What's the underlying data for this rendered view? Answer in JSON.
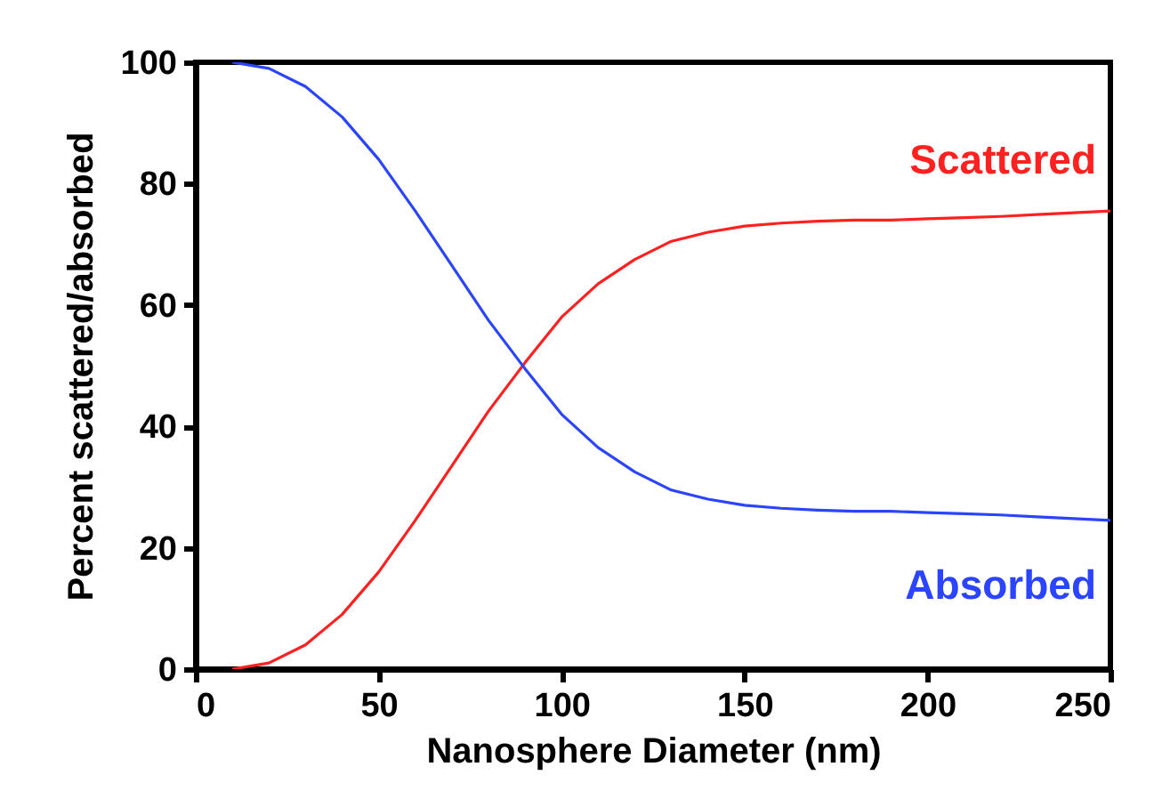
{
  "chart_data": {
    "type": "line",
    "xlabel": "Nanosphere Diameter (nm)",
    "ylabel": "Percent scattered/absorbed",
    "x": [
      10,
      20,
      30,
      40,
      50,
      60,
      70,
      80,
      90,
      100,
      110,
      120,
      130,
      140,
      150,
      160,
      170,
      180,
      190,
      200,
      210,
      220,
      230,
      240,
      250
    ],
    "series": [
      {
        "name": "Scattered",
        "color": "#ff2020",
        "values": [
          0,
          1,
          4,
          9,
          16,
          24.5,
          33.5,
          42.5,
          50.5,
          58,
          63.5,
          67.5,
          70.5,
          72,
          73,
          73.5,
          73.8,
          74,
          74,
          74.2,
          74.4,
          74.6,
          74.9,
          75.2,
          75.5
        ]
      },
      {
        "name": "Absorbed",
        "color": "#2b44ff",
        "values": [
          100,
          99,
          96,
          91,
          84,
          75.5,
          66.5,
          57.5,
          49.5,
          42,
          36.5,
          32.5,
          29.5,
          28,
          27,
          26.5,
          26.2,
          26,
          26,
          25.8,
          25.6,
          25.4,
          25.1,
          24.8,
          24.5
        ]
      }
    ],
    "xlim": [
      0,
      250
    ],
    "xticks": [
      0,
      50,
      100,
      150,
      200,
      250
    ],
    "ylim": [
      0,
      100
    ],
    "yticks": [
      0,
      20,
      40,
      60,
      80,
      100
    ],
    "grid": false,
    "marker": "none",
    "line_style": "solid"
  }
}
